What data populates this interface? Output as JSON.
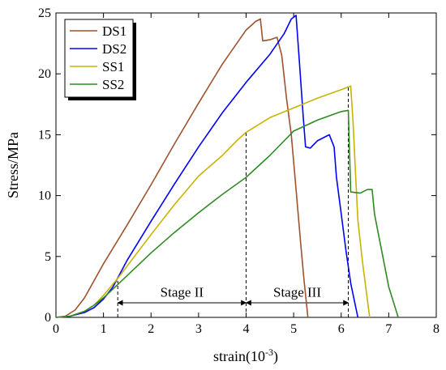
{
  "chart_data": {
    "type": "line",
    "xlabel": "strain(10",
    "xlabel_exponent": "-3",
    "xlabel_suffix": ")",
    "ylabel": "Stress/MPa",
    "xlim": [
      0,
      8
    ],
    "ylim": [
      0,
      25
    ],
    "xticks": [
      0,
      1,
      2,
      3,
      4,
      5,
      6,
      7,
      8
    ],
    "yticks": [
      0,
      5,
      10,
      15,
      20,
      25
    ],
    "grid": false,
    "legend_position": "top-left",
    "series": [
      {
        "name": "DS1",
        "color": "#a0522d",
        "points": [
          [
            0,
            0
          ],
          [
            0.2,
            0.1
          ],
          [
            0.4,
            0.6
          ],
          [
            0.6,
            1.6
          ],
          [
            0.8,
            3.0
          ],
          [
            1.0,
            4.4
          ],
          [
            1.5,
            7.6
          ],
          [
            2.0,
            10.9
          ],
          [
            2.5,
            14.3
          ],
          [
            3.0,
            17.6
          ],
          [
            3.5,
            20.8
          ],
          [
            4.0,
            23.6
          ],
          [
            4.2,
            24.3
          ],
          [
            4.3,
            24.5
          ],
          [
            4.35,
            22.7
          ],
          [
            4.5,
            22.8
          ],
          [
            4.65,
            23.0
          ],
          [
            4.75,
            21.5
          ],
          [
            4.85,
            18.0
          ],
          [
            4.95,
            15.0
          ],
          [
            5.05,
            10.5
          ],
          [
            5.15,
            6.0
          ],
          [
            5.22,
            3.0
          ],
          [
            5.3,
            0
          ]
        ]
      },
      {
        "name": "DS2",
        "color": "#0000ff",
        "points": [
          [
            0,
            0
          ],
          [
            0.3,
            0.1
          ],
          [
            0.6,
            0.4
          ],
          [
            0.8,
            0.8
          ],
          [
            1.0,
            1.5
          ],
          [
            1.2,
            2.5
          ],
          [
            1.5,
            4.7
          ],
          [
            2.0,
            7.9
          ],
          [
            2.5,
            11.0
          ],
          [
            3.0,
            14.0
          ],
          [
            3.5,
            16.8
          ],
          [
            4.0,
            19.3
          ],
          [
            4.5,
            21.6
          ],
          [
            4.8,
            23.3
          ],
          [
            4.95,
            24.5
          ],
          [
            5.05,
            24.8
          ],
          [
            5.12,
            21.0
          ],
          [
            5.2,
            16.5
          ],
          [
            5.25,
            14.0
          ],
          [
            5.35,
            13.9
          ],
          [
            5.5,
            14.5
          ],
          [
            5.75,
            15.0
          ],
          [
            5.85,
            14.0
          ],
          [
            5.9,
            11.5
          ],
          [
            6.0,
            8.5
          ],
          [
            6.1,
            5.5
          ],
          [
            6.2,
            2.8
          ],
          [
            6.35,
            0
          ]
        ]
      },
      {
        "name": "SS1",
        "color": "#c8b400",
        "points": [
          [
            0,
            0
          ],
          [
            0.3,
            0.1
          ],
          [
            0.6,
            0.5
          ],
          [
            0.8,
            1.0
          ],
          [
            1.0,
            1.8
          ],
          [
            1.3,
            3.2
          ],
          [
            2.0,
            6.8
          ],
          [
            2.5,
            9.3
          ],
          [
            3.0,
            11.6
          ],
          [
            3.5,
            13.3
          ],
          [
            3.8,
            14.5
          ],
          [
            4.0,
            15.2
          ],
          [
            4.5,
            16.4
          ],
          [
            5.0,
            17.2
          ],
          [
            5.5,
            18.0
          ],
          [
            6.0,
            18.7
          ],
          [
            6.2,
            19.0
          ],
          [
            6.25,
            16.0
          ],
          [
            6.3,
            12.0
          ],
          [
            6.35,
            8.0
          ],
          [
            6.45,
            4.5
          ],
          [
            6.6,
            0
          ]
        ]
      },
      {
        "name": "SS2",
        "color": "#2e8b23",
        "points": [
          [
            0,
            0
          ],
          [
            0.3,
            0.1
          ],
          [
            0.6,
            0.5
          ],
          [
            0.8,
            1.0
          ],
          [
            1.0,
            1.6
          ],
          [
            1.3,
            2.7
          ],
          [
            2.0,
            5.3
          ],
          [
            2.5,
            7.0
          ],
          [
            3.0,
            8.6
          ],
          [
            3.5,
            10.1
          ],
          [
            4.0,
            11.5
          ],
          [
            4.5,
            13.3
          ],
          [
            5.0,
            15.3
          ],
          [
            5.5,
            16.2
          ],
          [
            6.0,
            16.9
          ],
          [
            6.15,
            17.0
          ],
          [
            6.2,
            10.3
          ],
          [
            6.4,
            10.2
          ],
          [
            6.55,
            10.5
          ],
          [
            6.65,
            10.5
          ],
          [
            6.7,
            8.5
          ],
          [
            6.85,
            5.5
          ],
          [
            7.0,
            2.5
          ],
          [
            7.2,
            0
          ]
        ]
      }
    ],
    "annotations": {
      "vlines": [
        1.3,
        4.0,
        6.15
      ],
      "stages": [
        {
          "label": "Stage II",
          "x_start": 1.3,
          "x_end": 4.0,
          "y": 1.2,
          "label_y": 1.7
        },
        {
          "label": "Stage III",
          "x_start": 4.0,
          "x_end": 6.15,
          "y": 1.2,
          "label_y": 1.7
        }
      ]
    }
  }
}
